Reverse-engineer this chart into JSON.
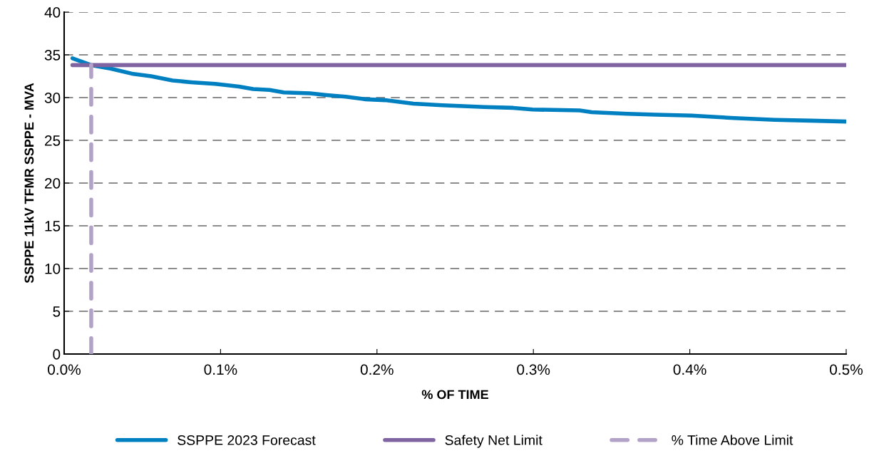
{
  "chart_data": {
    "type": "line",
    "xlabel": "% OF TIME",
    "ylabel": "SSPPE 11kV TFMR SSPPE - MVA",
    "xlim": [
      0,
      0.5
    ],
    "ylim": [
      0,
      40
    ],
    "xticks": [
      {
        "value": 0,
        "label": "0.0%"
      },
      {
        "value": 0.1,
        "label": "0.1%"
      },
      {
        "value": 0.2,
        "label": "0.2%"
      },
      {
        "value": 0.3,
        "label": "0.3%"
      },
      {
        "value": 0.4,
        "label": "0.4%"
      },
      {
        "value": 0.5,
        "label": "0.5%"
      }
    ],
    "yticks": [
      0,
      5,
      10,
      15,
      20,
      25,
      30,
      35,
      40
    ],
    "grid": "y",
    "legend": "bottom",
    "marker": "none",
    "series": [
      {
        "name": "SSPPE 2023 Forecast",
        "color": "#0080c0",
        "line_style": "solid",
        "x": [
          0.0053,
          0.0173,
          0.0296,
          0.0433,
          0.0556,
          0.0693,
          0.0811,
          0.0966,
          0.1117,
          0.1208,
          0.1313,
          0.1404,
          0.1572,
          0.1677,
          0.18,
          0.1928,
          0.2051,
          0.2233,
          0.2416,
          0.2689,
          0.2871,
          0.2995,
          0.3295,
          0.3373,
          0.3601,
          0.3783,
          0.4011,
          0.4284,
          0.4544,
          0.4772,
          0.5
        ],
        "values": [
          34.6,
          33.8,
          33.4,
          32.8,
          32.5,
          32.0,
          31.8,
          31.6,
          31.3,
          31.0,
          30.9,
          30.6,
          30.5,
          30.3,
          30.1,
          29.8,
          29.7,
          29.3,
          29.1,
          28.9,
          28.8,
          28.6,
          28.5,
          28.3,
          28.1,
          28.0,
          27.9,
          27.6,
          27.4,
          27.3,
          27.2
        ]
      },
      {
        "name": "Safety Net Limit",
        "color": "#8064a2",
        "line_style": "solid",
        "x": [
          0.0053,
          0.5
        ],
        "values": [
          33.8,
          33.8
        ]
      },
      {
        "name": "% Time Above Limit",
        "color": "#b3a2c7",
        "line_style": "dashed",
        "x": [
          0.0173,
          0.0173
        ],
        "values": [
          0,
          33.8
        ]
      }
    ]
  }
}
